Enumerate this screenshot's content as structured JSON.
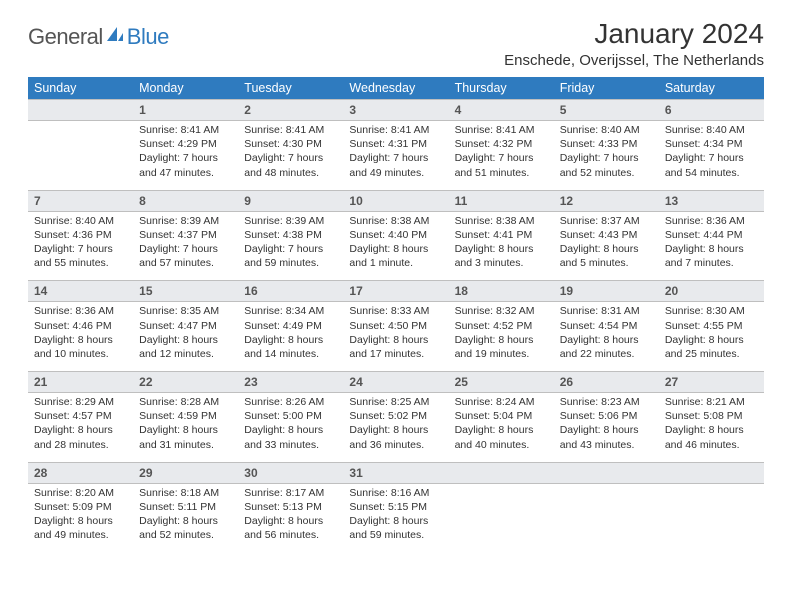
{
  "brand": {
    "part1": "General",
    "part2": "Blue"
  },
  "title": "January 2024",
  "location": "Enschede, Overijssel, The Netherlands",
  "colors": {
    "header_bg": "#2f7bbf",
    "header_text": "#ffffff",
    "daynum_bg": "#e8eaed",
    "week_divider": "#2f7bbf",
    "cell_border": "#bfbfbf",
    "body_text": "#333333"
  },
  "weekdays": [
    "Sunday",
    "Monday",
    "Tuesday",
    "Wednesday",
    "Thursday",
    "Friday",
    "Saturday"
  ],
  "weeks": [
    {
      "nums": [
        "",
        "1",
        "2",
        "3",
        "4",
        "5",
        "6"
      ],
      "cells": [
        null,
        {
          "sunrise": "Sunrise: 8:41 AM",
          "sunset": "Sunset: 4:29 PM",
          "day1": "Daylight: 7 hours",
          "day2": "and 47 minutes."
        },
        {
          "sunrise": "Sunrise: 8:41 AM",
          "sunset": "Sunset: 4:30 PM",
          "day1": "Daylight: 7 hours",
          "day2": "and 48 minutes."
        },
        {
          "sunrise": "Sunrise: 8:41 AM",
          "sunset": "Sunset: 4:31 PM",
          "day1": "Daylight: 7 hours",
          "day2": "and 49 minutes."
        },
        {
          "sunrise": "Sunrise: 8:41 AM",
          "sunset": "Sunset: 4:32 PM",
          "day1": "Daylight: 7 hours",
          "day2": "and 51 minutes."
        },
        {
          "sunrise": "Sunrise: 8:40 AM",
          "sunset": "Sunset: 4:33 PM",
          "day1": "Daylight: 7 hours",
          "day2": "and 52 minutes."
        },
        {
          "sunrise": "Sunrise: 8:40 AM",
          "sunset": "Sunset: 4:34 PM",
          "day1": "Daylight: 7 hours",
          "day2": "and 54 minutes."
        }
      ]
    },
    {
      "nums": [
        "7",
        "8",
        "9",
        "10",
        "11",
        "12",
        "13"
      ],
      "cells": [
        {
          "sunrise": "Sunrise: 8:40 AM",
          "sunset": "Sunset: 4:36 PM",
          "day1": "Daylight: 7 hours",
          "day2": "and 55 minutes."
        },
        {
          "sunrise": "Sunrise: 8:39 AM",
          "sunset": "Sunset: 4:37 PM",
          "day1": "Daylight: 7 hours",
          "day2": "and 57 minutes."
        },
        {
          "sunrise": "Sunrise: 8:39 AM",
          "sunset": "Sunset: 4:38 PM",
          "day1": "Daylight: 7 hours",
          "day2": "and 59 minutes."
        },
        {
          "sunrise": "Sunrise: 8:38 AM",
          "sunset": "Sunset: 4:40 PM",
          "day1": "Daylight: 8 hours",
          "day2": "and 1 minute."
        },
        {
          "sunrise": "Sunrise: 8:38 AM",
          "sunset": "Sunset: 4:41 PM",
          "day1": "Daylight: 8 hours",
          "day2": "and 3 minutes."
        },
        {
          "sunrise": "Sunrise: 8:37 AM",
          "sunset": "Sunset: 4:43 PM",
          "day1": "Daylight: 8 hours",
          "day2": "and 5 minutes."
        },
        {
          "sunrise": "Sunrise: 8:36 AM",
          "sunset": "Sunset: 4:44 PM",
          "day1": "Daylight: 8 hours",
          "day2": "and 7 minutes."
        }
      ]
    },
    {
      "nums": [
        "14",
        "15",
        "16",
        "17",
        "18",
        "19",
        "20"
      ],
      "cells": [
        {
          "sunrise": "Sunrise: 8:36 AM",
          "sunset": "Sunset: 4:46 PM",
          "day1": "Daylight: 8 hours",
          "day2": "and 10 minutes."
        },
        {
          "sunrise": "Sunrise: 8:35 AM",
          "sunset": "Sunset: 4:47 PM",
          "day1": "Daylight: 8 hours",
          "day2": "and 12 minutes."
        },
        {
          "sunrise": "Sunrise: 8:34 AM",
          "sunset": "Sunset: 4:49 PM",
          "day1": "Daylight: 8 hours",
          "day2": "and 14 minutes."
        },
        {
          "sunrise": "Sunrise: 8:33 AM",
          "sunset": "Sunset: 4:50 PM",
          "day1": "Daylight: 8 hours",
          "day2": "and 17 minutes."
        },
        {
          "sunrise": "Sunrise: 8:32 AM",
          "sunset": "Sunset: 4:52 PM",
          "day1": "Daylight: 8 hours",
          "day2": "and 19 minutes."
        },
        {
          "sunrise": "Sunrise: 8:31 AM",
          "sunset": "Sunset: 4:54 PM",
          "day1": "Daylight: 8 hours",
          "day2": "and 22 minutes."
        },
        {
          "sunrise": "Sunrise: 8:30 AM",
          "sunset": "Sunset: 4:55 PM",
          "day1": "Daylight: 8 hours",
          "day2": "and 25 minutes."
        }
      ]
    },
    {
      "nums": [
        "21",
        "22",
        "23",
        "24",
        "25",
        "26",
        "27"
      ],
      "cells": [
        {
          "sunrise": "Sunrise: 8:29 AM",
          "sunset": "Sunset: 4:57 PM",
          "day1": "Daylight: 8 hours",
          "day2": "and 28 minutes."
        },
        {
          "sunrise": "Sunrise: 8:28 AM",
          "sunset": "Sunset: 4:59 PM",
          "day1": "Daylight: 8 hours",
          "day2": "and 31 minutes."
        },
        {
          "sunrise": "Sunrise: 8:26 AM",
          "sunset": "Sunset: 5:00 PM",
          "day1": "Daylight: 8 hours",
          "day2": "and 33 minutes."
        },
        {
          "sunrise": "Sunrise: 8:25 AM",
          "sunset": "Sunset: 5:02 PM",
          "day1": "Daylight: 8 hours",
          "day2": "and 36 minutes."
        },
        {
          "sunrise": "Sunrise: 8:24 AM",
          "sunset": "Sunset: 5:04 PM",
          "day1": "Daylight: 8 hours",
          "day2": "and 40 minutes."
        },
        {
          "sunrise": "Sunrise: 8:23 AM",
          "sunset": "Sunset: 5:06 PM",
          "day1": "Daylight: 8 hours",
          "day2": "and 43 minutes."
        },
        {
          "sunrise": "Sunrise: 8:21 AM",
          "sunset": "Sunset: 5:08 PM",
          "day1": "Daylight: 8 hours",
          "day2": "and 46 minutes."
        }
      ]
    },
    {
      "nums": [
        "28",
        "29",
        "30",
        "31",
        "",
        "",
        ""
      ],
      "cells": [
        {
          "sunrise": "Sunrise: 8:20 AM",
          "sunset": "Sunset: 5:09 PM",
          "day1": "Daylight: 8 hours",
          "day2": "and 49 minutes."
        },
        {
          "sunrise": "Sunrise: 8:18 AM",
          "sunset": "Sunset: 5:11 PM",
          "day1": "Daylight: 8 hours",
          "day2": "and 52 minutes."
        },
        {
          "sunrise": "Sunrise: 8:17 AM",
          "sunset": "Sunset: 5:13 PM",
          "day1": "Daylight: 8 hours",
          "day2": "and 56 minutes."
        },
        {
          "sunrise": "Sunrise: 8:16 AM",
          "sunset": "Sunset: 5:15 PM",
          "day1": "Daylight: 8 hours",
          "day2": "and 59 minutes."
        },
        null,
        null,
        null
      ]
    }
  ]
}
